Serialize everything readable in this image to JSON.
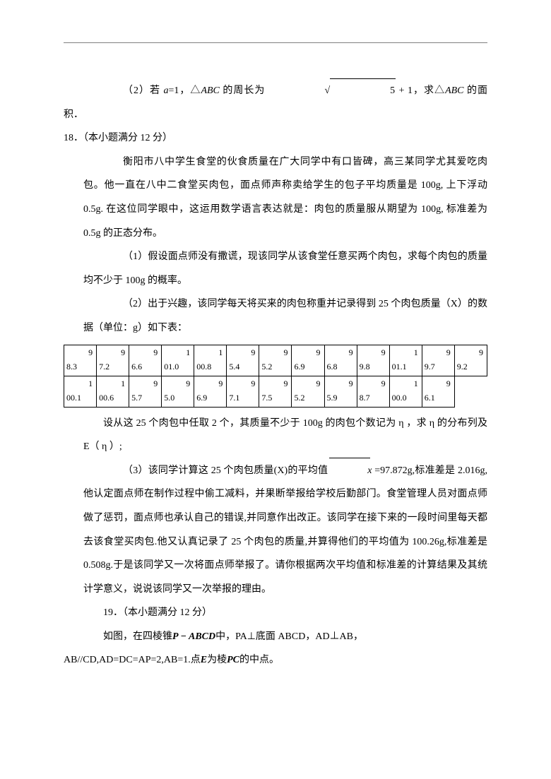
{
  "q17_part2": {
    "pre": "（2）若 ",
    "a_eq": "a",
    "a_val": "=1，△",
    "abc1": "ABC",
    "mid": " 的周长为",
    "sqrt_inner": "5",
    "tail": " + 1，求△",
    "abc2": "ABC",
    "end": " 的面积．"
  },
  "q18_head": "18．（本小题满分 12 分）",
  "q18_p1": "衡阳市八中学生食堂的伙食质量在广大同学中有口皆碑，高三某同学尤其爱吃肉包。他一直在八中二食堂买肉包，面点师声称卖给学生的包子平均质量是 100g, 上下浮动 0.5g. 在这位同学眼中，这运用数学语言表达就是：肉包的质量服从期望为 100g, 标准差为 0.5g 的正态分布。",
  "q18_sub1": "（1）假设面点师没有撒谎，现该同学从该食堂任意买两个肉包，求每个肉包的质量均不少于 100g 的概率。",
  "q18_sub2": "（2）出于兴趣，该同学每天将买来的肉包称重并记录得到 25 个肉包质量（X）的数据（单位：g）如下表：",
  "table_row1": [
    {
      "a": "9",
      "b": "8.3"
    },
    {
      "a": "9",
      "b": "7.2"
    },
    {
      "a": "9",
      "b": "6.6"
    },
    {
      "a": "1",
      "b": "01.0"
    },
    {
      "a": "1",
      "b": "00.8"
    },
    {
      "a": "9",
      "b": "5.4"
    },
    {
      "a": "9",
      "b": "5.2"
    },
    {
      "a": "9",
      "b": "6.9"
    },
    {
      "a": "9",
      "b": "6.8"
    },
    {
      "a": "9",
      "b": "9.8"
    },
    {
      "a": "1",
      "b": "01.1"
    },
    {
      "a": "9",
      "b": "9.7"
    },
    {
      "a": "9",
      "b": "9.2"
    }
  ],
  "table_row2": [
    {
      "a": "1",
      "b": "00.1"
    },
    {
      "a": "1",
      "b": "00.6"
    },
    {
      "a": "9",
      "b": "5.7"
    },
    {
      "a": "9",
      "b": "5.0"
    },
    {
      "a": "9",
      "b": "6.9"
    },
    {
      "a": "9",
      "b": "7.1"
    },
    {
      "a": "9",
      "b": "7.5"
    },
    {
      "a": "9",
      "b": "5.2"
    },
    {
      "a": "9",
      "b": "5.9"
    },
    {
      "a": "9",
      "b": "8.7"
    },
    {
      "a": "1",
      "b": "00.0"
    },
    {
      "a": "9",
      "b": "6.1"
    }
  ],
  "q18_sub2_after": "设从这 25 个肉包中任取 2 个，其质量不少于 100g 的肉包个数记为 η ，求 η 的分布列及 E（ η ）;",
  "q18_sub3_a": "（3）该同学计算这 25 个肉包质量(X)的平均值",
  "q18_sub3_b": " =97.872g,标准差是 2.016g,他认定面点师在制作过程中偷工减料，并果断举报给学校后勤部门。食堂管理人员对面点师做了惩罚，面点师也承认自己的错误,并同意作出改正。该同学在接下来的一段时间里每天都去该食堂买肉包.他又认真记录了 25 个肉包的质量,并算得他们的平均值为 100.26g,标准差是 0.508g.于是该同学又一次将面点师举报了。请你根据两次平均值和标准差的计算结果及其统计学意义，说说该同学又一次举报的理由。",
  "q19_head": "19．（本小题满分 12 分）",
  "q19_l1_a": "如图，在四棱锥",
  "q19_l1_b": "P − ABCD",
  "q19_l1_c": "中，PA⊥底面 ABCD，AD⊥AB，",
  "q19_l2_a": "AB//CD,AD=DC=AP=2,AB=1.点",
  "q19_l2_b": "E",
  "q19_l2_c": "为棱",
  "q19_l2_d": "PC",
  "q19_l2_e": "的中点。"
}
